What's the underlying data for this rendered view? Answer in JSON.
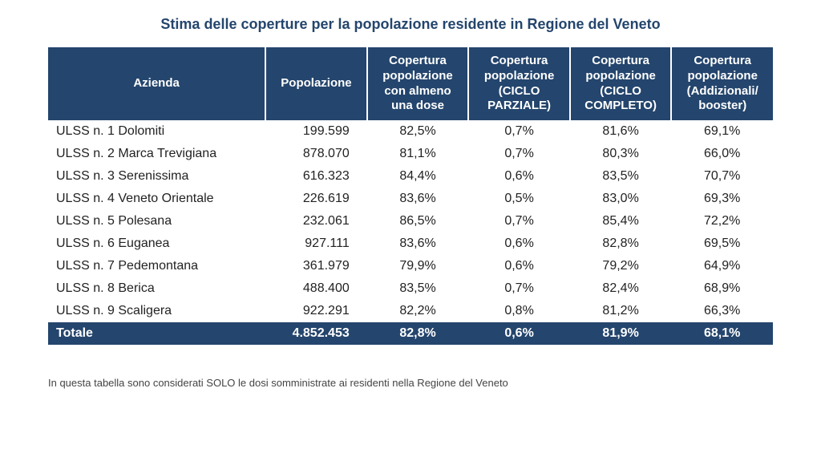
{
  "title": "Stima delle coperture per la popolazione residente in Regione del Veneto",
  "colors": {
    "title_text": "#24456d",
    "header_bg": "#24456d",
    "header_text": "#ffffff",
    "total_bg": "#24456d",
    "total_text": "#ffffff"
  },
  "columns": [
    {
      "label": "Azienda",
      "width": "30%"
    },
    {
      "label": "Popolazione",
      "width": "14%"
    },
    {
      "label": "Copertura popolazione con almeno una dose",
      "width": "14%"
    },
    {
      "label": "Copertura popolazione (CICLO PARZIALE)",
      "width": "14%"
    },
    {
      "label": "Copertura popolazione (CICLO COMPLETO)",
      "width": "14%"
    },
    {
      "label": "Copertura popolazione (Addizionali/ booster)",
      "width": "14%"
    }
  ],
  "rows": [
    {
      "azienda": "ULSS n. 1 Dolomiti",
      "popolazione": "199.599",
      "almeno_una": "82,5%",
      "parziale": "0,7%",
      "completo": "81,6%",
      "booster": "69,1%"
    },
    {
      "azienda": "ULSS n. 2 Marca Trevigiana",
      "popolazione": "878.070",
      "almeno_una": "81,1%",
      "parziale": "0,7%",
      "completo": "80,3%",
      "booster": "66,0%"
    },
    {
      "azienda": "ULSS n. 3 Serenissima",
      "popolazione": "616.323",
      "almeno_una": "84,4%",
      "parziale": "0,6%",
      "completo": "83,5%",
      "booster": "70,7%"
    },
    {
      "azienda": "ULSS n. 4 Veneto Orientale",
      "popolazione": "226.619",
      "almeno_una": "83,6%",
      "parziale": "0,5%",
      "completo": "83,0%",
      "booster": "69,3%"
    },
    {
      "azienda": "ULSS n. 5 Polesana",
      "popolazione": "232.061",
      "almeno_una": "86,5%",
      "parziale": "0,7%",
      "completo": "85,4%",
      "booster": "72,2%"
    },
    {
      "azienda": "ULSS n. 6 Euganea",
      "popolazione": "927.111",
      "almeno_una": "83,6%",
      "parziale": "0,6%",
      "completo": "82,8%",
      "booster": "69,5%"
    },
    {
      "azienda": "ULSS n. 7 Pedemontana",
      "popolazione": "361.979",
      "almeno_una": "79,9%",
      "parziale": "0,6%",
      "completo": "79,2%",
      "booster": "64,9%"
    },
    {
      "azienda": "ULSS n. 8 Berica",
      "popolazione": "488.400",
      "almeno_una": "83,5%",
      "parziale": "0,7%",
      "completo": "82,4%",
      "booster": "68,9%"
    },
    {
      "azienda": "ULSS n. 9 Scaligera",
      "popolazione": "922.291",
      "almeno_una": "82,2%",
      "parziale": "0,8%",
      "completo": "81,2%",
      "booster": "66,3%"
    }
  ],
  "total": {
    "azienda": "Totale",
    "popolazione": "4.852.453",
    "almeno_una": "82,8%",
    "parziale": "0,6%",
    "completo": "81,9%",
    "booster": "68,1%"
  },
  "footnote": "In questa tabella sono considerati SOLO le dosi somministrate ai residenti nella Regione del Veneto"
}
